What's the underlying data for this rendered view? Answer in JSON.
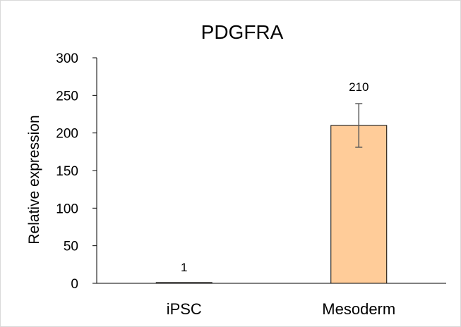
{
  "chart_data": {
    "type": "bar",
    "title": "PDGFRA",
    "ylabel": "Relative expression",
    "xlabel": "",
    "categories": [
      "iPSC",
      "Mesoderm"
    ],
    "values": [
      1,
      210
    ],
    "error_bars": [
      {
        "low": 1,
        "high": 1
      },
      {
        "low": 181,
        "high": 239
      }
    ],
    "data_labels": [
      "1",
      "210"
    ],
    "ylim": [
      0,
      300
    ],
    "yticks": [
      "0",
      "50",
      "100",
      "150",
      "200",
      "250",
      "300"
    ],
    "grid": false,
    "legend": "none",
    "colors": {
      "bar_fill": "#ffcc99",
      "bar_stroke": "#000000",
      "error_bar": "#595959",
      "axis": "#000000"
    }
  }
}
